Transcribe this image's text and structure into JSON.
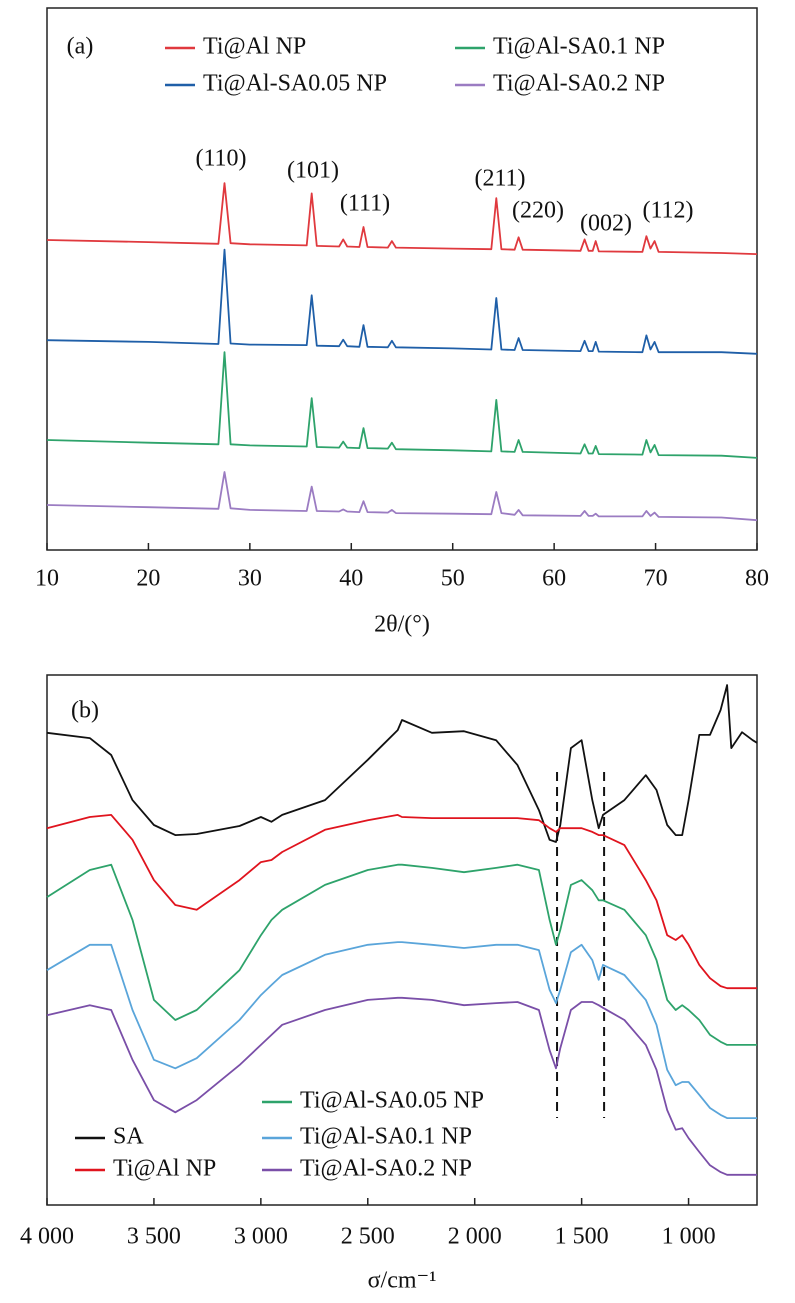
{
  "chart_data": [
    {
      "type": "line",
      "panel_label": "(a)",
      "xlabel": "2θ/(°)",
      "xlim": [
        10,
        80
      ],
      "xticks": [
        10,
        20,
        30,
        40,
        50,
        60,
        70,
        80
      ],
      "ylim": [
        0,
        100
      ],
      "x": [
        10,
        20,
        26.9,
        27.5,
        28.1,
        30,
        35.6,
        36.1,
        36.6,
        38.8,
        39.2,
        39.6,
        40.8,
        41.2,
        41.6,
        43.6,
        44,
        44.4,
        50,
        53.8,
        54.3,
        54.8,
        56.1,
        56.5,
        56.9,
        62.6,
        63,
        63.4,
        63.8,
        64.1,
        64.4,
        68.7,
        69.1,
        69.5,
        69.9,
        70.3,
        76.5,
        80
      ],
      "series": [
        {
          "name": "Ti@Al NP",
          "color": "#e0393e",
          "values": [
            57.2,
            56.8,
            56.5,
            67.7,
            56.6,
            56.4,
            56.2,
            65.8,
            56.1,
            56.0,
            57.3,
            56.0,
            55.9,
            59.6,
            55.9,
            55.8,
            57.0,
            55.8,
            55.6,
            55.5,
            64.9,
            55.5,
            55.4,
            57.7,
            55.4,
            55.2,
            57.3,
            55.2,
            55.2,
            57.0,
            55.1,
            55.0,
            57.9,
            55.6,
            57.0,
            55.0,
            54.8,
            54.6
          ]
        },
        {
          "name": "Ti@Al-SA0.05 NP",
          "color": "#1f5fa8",
          "values": [
            38.7,
            38.4,
            38.0,
            55.4,
            38.1,
            37.9,
            37.8,
            47.0,
            37.7,
            37.6,
            38.8,
            37.6,
            37.5,
            41.5,
            37.5,
            37.4,
            38.6,
            37.4,
            37.2,
            37.0,
            46.5,
            37.0,
            36.9,
            39.1,
            36.9,
            36.7,
            38.6,
            36.7,
            36.7,
            38.4,
            36.6,
            36.5,
            39.6,
            37.0,
            38.4,
            36.5,
            36.5,
            36.2
          ]
        },
        {
          "name": "Ti@Al-SA0.1 NP",
          "color": "#2ea36b",
          "values": [
            20.3,
            19.8,
            19.5,
            36.5,
            19.5,
            19.3,
            19.1,
            28.0,
            19.0,
            18.9,
            20.0,
            18.9,
            18.8,
            22.5,
            18.8,
            18.7,
            19.8,
            18.6,
            18.4,
            18.2,
            27.7,
            18.2,
            18.1,
            20.3,
            18.1,
            17.8,
            19.5,
            17.8,
            17.8,
            19.2,
            17.7,
            17.6,
            20.3,
            18.0,
            19.4,
            17.5,
            17.4,
            17.0
          ]
        },
        {
          "name": "Ti@Al-SA0.2 NP",
          "color": "#9b7cc2",
          "values": [
            8.3,
            7.9,
            7.6,
            14.4,
            7.7,
            7.4,
            7.2,
            11.7,
            7.2,
            7.1,
            7.5,
            7.1,
            7.0,
            9.0,
            7.0,
            6.9,
            7.4,
            6.8,
            6.7,
            6.6,
            10.7,
            6.8,
            6.5,
            7.4,
            6.4,
            6.3,
            7.2,
            6.3,
            6.3,
            6.7,
            6.2,
            6.2,
            7.2,
            6.3,
            6.9,
            6.1,
            6.0,
            5.5
          ]
        }
      ],
      "annotations": [
        "(110)",
        "(101)",
        "(111)",
        "(211)",
        "(220)",
        "(002)",
        "(112)"
      ]
    },
    {
      "type": "line",
      "panel_label": "(b)",
      "xlabel": "σ/cm⁻¹",
      "xlim": [
        4000,
        680
      ],
      "xticks": [
        {
          "value": 4000,
          "label": "4 000"
        },
        {
          "value": 3500,
          "label": "3 500"
        },
        {
          "value": 3000,
          "label": "3 000"
        },
        {
          "value": 2500,
          "label": "2 500"
        },
        {
          "value": 2000,
          "label": "2 000"
        },
        {
          "value": 1500,
          "label": "1 500"
        },
        {
          "value": 1000,
          "label": "1 000"
        }
      ],
      "ylim": [
        0,
        100
      ],
      "reference_lines": [
        1615,
        1395
      ],
      "x": [
        4000,
        3800,
        3700,
        3600,
        3500,
        3400,
        3300,
        3100,
        3000,
        2950,
        2900,
        2700,
        2500,
        2360,
        2340,
        2200,
        2050,
        1900,
        1800,
        1700,
        1650,
        1620,
        1600,
        1550,
        1500,
        1450,
        1420,
        1400,
        1300,
        1200,
        1150,
        1100,
        1060,
        1030,
        1000,
        950,
        900,
        850,
        820,
        800,
        750,
        700,
        680
      ],
      "series": [
        {
          "name": "SA",
          "color": "#111111",
          "values": [
            89.1,
            88.1,
            84.9,
            76.4,
            71.7,
            69.8,
            70.0,
            71.5,
            73.2,
            72.3,
            73.6,
            76.4,
            84.0,
            89.6,
            91.5,
            89.1,
            89.4,
            87.7,
            83.0,
            74.5,
            68.9,
            68.5,
            71.7,
            86.2,
            87.7,
            76.4,
            71.1,
            73.6,
            76.4,
            81.1,
            78.3,
            71.7,
            69.8,
            69.8,
            76.4,
            88.7,
            88.7,
            93.4,
            98.1,
            86.2,
            89.2,
            87.7,
            87.2
          ]
        },
        {
          "name": "Ti@Al NP",
          "color": "#e0141e",
          "values": [
            71.1,
            73.2,
            73.6,
            68.9,
            61.3,
            56.6,
            55.7,
            61.3,
            64.7,
            65.1,
            66.6,
            70.8,
            72.6,
            73.6,
            73.2,
            73.0,
            73.0,
            73.0,
            73.0,
            72.6,
            71.1,
            70.4,
            71.1,
            71.1,
            71.1,
            70.4,
            69.8,
            69.8,
            67.9,
            61.3,
            57.5,
            50.9,
            50.0,
            50.9,
            49.1,
            45.3,
            42.8,
            41.3,
            40.9,
            40.9,
            40.9,
            40.9,
            40.9
          ]
        },
        {
          "name": "Ti@Al-SA0.05 NP",
          "color": "#2ea36b",
          "values": [
            58.1,
            63.2,
            64.2,
            53.8,
            38.7,
            34.9,
            36.8,
            44.3,
            50.9,
            53.8,
            55.7,
            60.4,
            63.2,
            64.2,
            64.2,
            63.6,
            62.8,
            63.6,
            64.2,
            63.2,
            53.8,
            49.1,
            51.9,
            60.4,
            61.3,
            59.4,
            57.5,
            57.5,
            55.7,
            50.9,
            46.2,
            38.7,
            36.8,
            37.7,
            36.8,
            34.9,
            32.1,
            30.8,
            30.2,
            30.2,
            30.2,
            30.2,
            30.2
          ]
        },
        {
          "name": "Ti@Al-SA0.1 NP",
          "color": "#5aa5da",
          "values": [
            44.3,
            49.1,
            49.1,
            36.8,
            27.4,
            25.8,
            27.7,
            34.9,
            39.6,
            41.5,
            43.4,
            47.2,
            49.1,
            49.6,
            49.6,
            49.1,
            48.5,
            49.1,
            49.1,
            48.1,
            40.6,
            38.1,
            40.6,
            47.7,
            49.1,
            46.2,
            42.5,
            45.3,
            43.4,
            38.7,
            34.0,
            25.5,
            22.6,
            23.2,
            23.2,
            20.8,
            18.3,
            17.0,
            16.4,
            16.4,
            16.4,
            16.4,
            16.4
          ]
        },
        {
          "name": "Ti@Al-SA0.2 NP",
          "color": "#7a4fa8",
          "values": [
            35.8,
            37.7,
            36.8,
            27.4,
            19.8,
            17.5,
            19.8,
            26.4,
            30.2,
            32.1,
            34.0,
            36.8,
            38.7,
            39.1,
            39.1,
            38.7,
            37.7,
            38.1,
            38.3,
            36.8,
            29.2,
            25.8,
            29.6,
            36.8,
            38.3,
            38.3,
            37.7,
            37.2,
            34.9,
            30.2,
            25.5,
            17.9,
            14.2,
            14.5,
            12.6,
            10.0,
            7.5,
            6.2,
            5.7,
            5.7,
            5.7,
            5.7,
            5.7
          ]
        }
      ]
    }
  ]
}
